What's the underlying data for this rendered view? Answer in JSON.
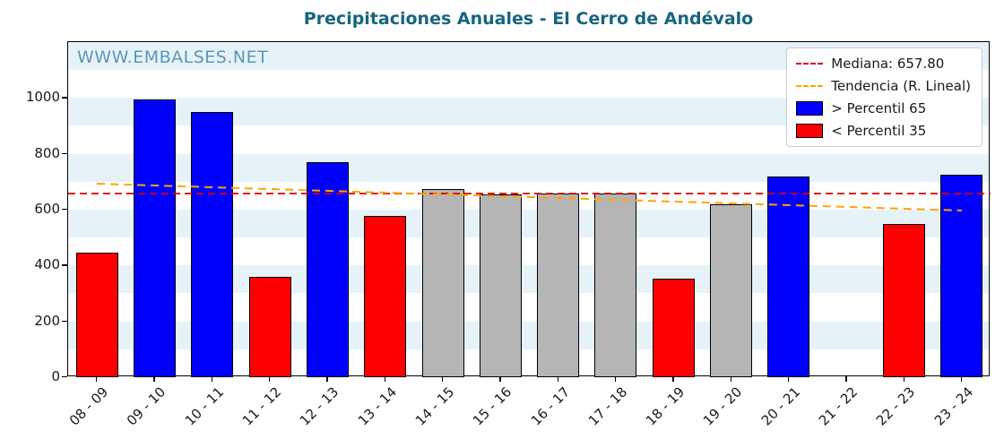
{
  "title": "Precipitaciones Anuales - El Cerro de Andévalo",
  "watermark": "WWW.EMBALSES.NET",
  "legend": {
    "median_label": "Mediana: 657.80",
    "trend_label": "Tendencia (R. Lineal)",
    "above_label": "> Percentil 65",
    "below_label": "< Percentil 35"
  },
  "colors": {
    "above": "#0000ff",
    "below": "#ff0000",
    "mid": "#b5b5b5",
    "median_line": "#dd0000",
    "trend_line": "#ffa500",
    "band": "#e5f3f9",
    "title": "#17657f",
    "watermark": "#4886a8"
  },
  "chart_data": {
    "type": "bar",
    "title": "Precipitaciones Anuales - El Cerro de Andévalo",
    "categories": [
      "08 - 09",
      "09 - 10",
      "10 - 11",
      "11 - 12",
      "12 - 13",
      "13 - 14",
      "14 - 15",
      "15 - 16",
      "16 - 17",
      "17 - 18",
      "18 - 19",
      "19 - 20",
      "20 - 21",
      "21 - 22",
      "22 - 23",
      "23 - 24"
    ],
    "values": [
      445,
      995,
      950,
      360,
      770,
      578,
      675,
      655,
      658,
      657,
      352,
      620,
      720,
      null,
      548,
      725
    ],
    "bar_classes": [
      "below",
      "above",
      "above",
      "below",
      "above",
      "below",
      "mid",
      "mid",
      "mid",
      "mid",
      "below",
      "mid",
      "above",
      null,
      "below",
      "above"
    ],
    "median": 657.8,
    "trend_line": {
      "start_value": 693,
      "end_value": 597
    },
    "ylim": [
      0,
      1200
    ],
    "yticks": [
      0,
      200,
      400,
      600,
      800,
      1000
    ],
    "xlabel": "",
    "ylabel": "",
    "grid": "horizontal-bands",
    "legend_position": "upper-right"
  }
}
